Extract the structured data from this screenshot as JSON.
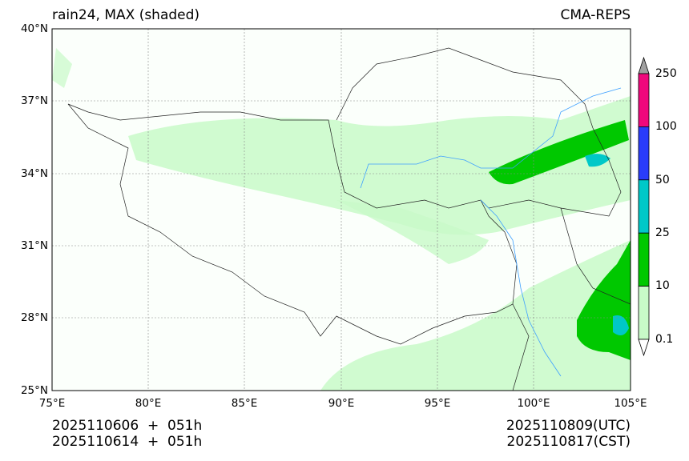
{
  "title_left": "rain24, MAX (shaded)",
  "title_right": "CMA-REPS",
  "lat_labels": [
    "40°N",
    "37°N",
    "34°N",
    "31°N",
    "28°N",
    "25°N"
  ],
  "lon_labels": [
    "75°E",
    "80°E",
    "85°E",
    "90°E",
    "95°E",
    "100°E",
    "105°E"
  ],
  "colorbar": {
    "labels": [
      "250",
      "100",
      "50",
      "25",
      "10",
      "0.1"
    ],
    "colors": [
      "#f0087c",
      "#2a3cfa",
      "#00c8c8",
      "#00c800",
      "#c8fac8"
    ],
    "over_color": "#a0a0a0",
    "under_color": "#ffffff"
  },
  "footer": {
    "init_utc": "2025110606  +  051h",
    "init_cst": "2025110614  +  051h",
    "valid_utc": "2025110809(UTC)",
    "valid_cst": "2025110817(CST)"
  }
}
